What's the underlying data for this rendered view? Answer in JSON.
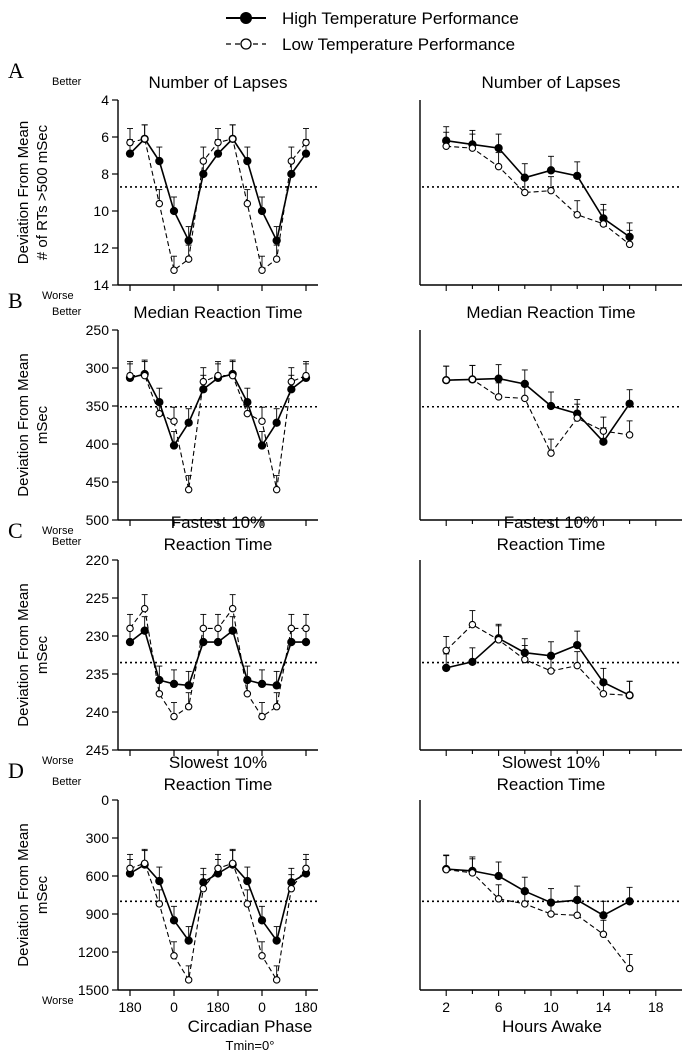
{
  "legend": {
    "high": "High Temperature Performance",
    "low": "Low Temperature Performance"
  },
  "better_label": "Better",
  "worse_label": "Worse",
  "phase_xaxis": {
    "title": "Circadian Phase",
    "subtitle": "Tmin=0°"
  },
  "hours_xaxis": {
    "title": "Hours Awake"
  },
  "chart_data": [
    {
      "letter": "A",
      "type": "line",
      "axis": "phase",
      "title": [
        "Number of Lapses"
      ],
      "ylabel": [
        "Deviation From Mean",
        "# of RTs >500 mSec"
      ],
      "ylim": [
        4,
        14
      ],
      "yticks": [
        4,
        6,
        8,
        10,
        12,
        14
      ],
      "y_inverted": true,
      "reference": 8.7,
      "x_ticks": [
        "180",
        "0",
        "180",
        "0",
        "180"
      ],
      "series": [
        {
          "name": "High Temperature Performance",
          "values": [
            6.9,
            6.1,
            7.3,
            10.0,
            11.6,
            8.0,
            6.9,
            6.1,
            7.3,
            10.0,
            11.6,
            8.0,
            6.9
          ]
        },
        {
          "name": "Low Temperature Performance",
          "values": [
            6.3,
            6.1,
            9.6,
            13.2,
            12.6,
            7.3,
            6.3,
            6.1,
            9.6,
            13.2,
            12.6,
            7.3,
            6.3
          ]
        }
      ]
    },
    {
      "letter": "",
      "type": "line",
      "axis": "hours",
      "title": [
        "Number of Lapses"
      ],
      "ylim": [
        4,
        14
      ],
      "y_inverted": true,
      "reference": 8.7,
      "x": [
        2,
        4,
        6,
        8,
        10,
        12,
        14,
        16
      ],
      "series": [
        {
          "name": "High Temperature Performance",
          "values": [
            6.2,
            6.4,
            6.6,
            8.2,
            7.8,
            8.1,
            10.4,
            11.4
          ]
        },
        {
          "name": "Low Temperature Performance",
          "values": [
            6.5,
            6.6,
            7.6,
            9.0,
            8.9,
            10.2,
            10.7,
            11.8
          ]
        }
      ]
    },
    {
      "letter": "B",
      "type": "line",
      "axis": "phase",
      "title": [
        "Median Reaction Time"
      ],
      "ylabel": [
        "Deviation From Mean",
        "mSec"
      ],
      "ylim": [
        250,
        500
      ],
      "yticks": [
        250,
        300,
        350,
        400,
        450,
        500
      ],
      "y_inverted": true,
      "reference": 351,
      "x_ticks": [
        "180",
        "0",
        "180",
        "0",
        "180"
      ],
      "series": [
        {
          "name": "High Temperature Performance",
          "values": [
            313,
            308,
            345,
            402,
            372,
            328,
            313,
            308,
            345,
            402,
            372,
            328,
            313
          ]
        },
        {
          "name": "Low Temperature Performance",
          "values": [
            310,
            310,
            360,
            370,
            460,
            318,
            310,
            310,
            360,
            370,
            460,
            318,
            310
          ]
        }
      ]
    },
    {
      "letter": "",
      "type": "line",
      "axis": "hours",
      "title": [
        "Median Reaction Time"
      ],
      "ylim": [
        250,
        500
      ],
      "y_inverted": true,
      "reference": 351,
      "x": [
        2,
        4,
        6,
        8,
        10,
        12,
        14,
        16
      ],
      "series": [
        {
          "name": "High Temperature Performance",
          "values": [
            316,
            315,
            314,
            321,
            350,
            360,
            397,
            347
          ]
        },
        {
          "name": "Low Temperature Performance",
          "values": [
            316,
            315,
            338,
            340,
            412,
            366,
            383,
            388
          ]
        }
      ]
    },
    {
      "letter": "C",
      "type": "line",
      "axis": "phase",
      "title": [
        "Fastest 10%",
        "Reaction Time"
      ],
      "ylabel": [
        "Deviation From Mean",
        "mSec"
      ],
      "ylim": [
        220,
        245
      ],
      "yticks": [
        220,
        225,
        230,
        235,
        240,
        245
      ],
      "y_inverted": true,
      "reference": 233.5,
      "x_ticks": [
        "180",
        "0",
        "180",
        "0",
        "180"
      ],
      "series": [
        {
          "name": "High Temperature Performance",
          "values": [
            230.8,
            229.3,
            235.8,
            236.3,
            236.5,
            230.8,
            230.8,
            229.3,
            235.8,
            236.3,
            236.5,
            230.8,
            230.8
          ]
        },
        {
          "name": "Low Temperature Performance",
          "values": [
            229.0,
            226.4,
            237.6,
            240.6,
            239.3,
            229.0,
            229.0,
            226.4,
            237.6,
            240.6,
            239.3,
            229.0,
            229.0
          ]
        }
      ]
    },
    {
      "letter": "",
      "type": "line",
      "axis": "hours",
      "title": [
        "Fastest 10%",
        "Reaction Time"
      ],
      "ylim": [
        220,
        245
      ],
      "y_inverted": true,
      "reference": 233.5,
      "x": [
        2,
        4,
        6,
        8,
        10,
        12,
        14,
        16
      ],
      "series": [
        {
          "name": "High Temperature Performance",
          "values": [
            234.2,
            233.4,
            230.3,
            232.2,
            232.6,
            231.2,
            236.1,
            237.8
          ]
        },
        {
          "name": "Low Temperature Performance",
          "values": [
            231.9,
            228.5,
            230.5,
            233.1,
            234.6,
            233.9,
            237.6,
            237.8
          ]
        }
      ]
    },
    {
      "letter": "D",
      "type": "line",
      "axis": "phase",
      "title": [
        "Slowest 10%",
        "Reaction Time"
      ],
      "ylabel": [
        "Deviation From Mean",
        "mSec"
      ],
      "ylim": [
        0,
        1500
      ],
      "yticks": [
        0,
        300,
        600,
        900,
        1200,
        1500
      ],
      "y_inverted": true,
      "reference": 800,
      "x_ticks": [
        "180",
        "0",
        "180",
        "0",
        "180"
      ],
      "series": [
        {
          "name": "High Temperature Performance",
          "values": [
            580,
            510,
            640,
            950,
            1110,
            650,
            580,
            510,
            640,
            950,
            1110,
            650,
            580
          ]
        },
        {
          "name": "Low Temperature Performance",
          "values": [
            540,
            500,
            820,
            1230,
            1420,
            700,
            540,
            500,
            820,
            1230,
            1420,
            700,
            540
          ]
        }
      ]
    },
    {
      "letter": "",
      "type": "line",
      "axis": "hours",
      "title": [
        "Slowest 10%",
        "Reaction Time"
      ],
      "ylim": [
        0,
        1500
      ],
      "y_inverted": true,
      "reference": 800,
      "x": [
        2,
        4,
        6,
        8,
        10,
        12,
        14,
        16
      ],
      "series": [
        {
          "name": "High Temperature Performance",
          "values": [
            545,
            560,
            600,
            720,
            810,
            790,
            910,
            800
          ]
        },
        {
          "name": "Low Temperature Performance",
          "values": [
            550,
            575,
            780,
            820,
            900,
            910,
            1060,
            1330
          ]
        }
      ]
    }
  ]
}
